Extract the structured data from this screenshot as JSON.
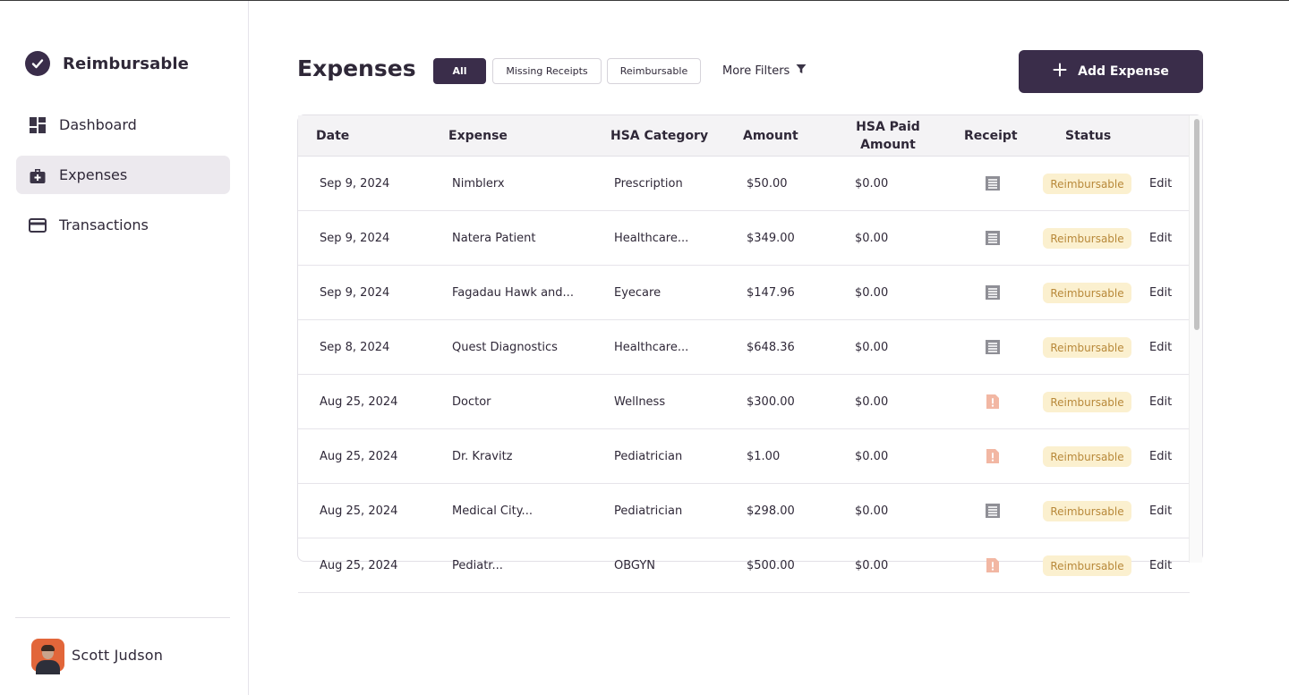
{
  "sidebar": {
    "brand": {
      "name": "Reimbursable",
      "icon": "check-circle-icon"
    },
    "nav": [
      {
        "label": "Dashboard",
        "icon": "dashboard-icon",
        "active": false
      },
      {
        "label": "Expenses",
        "icon": "medical-bag-icon",
        "active": true
      },
      {
        "label": "Transactions",
        "icon": "credit-card-icon",
        "active": false
      }
    ],
    "user": {
      "name": "Scott Judson"
    }
  },
  "header": {
    "title": "Expenses",
    "filters": [
      {
        "label": "All",
        "active": true
      },
      {
        "label": "Missing Receipts",
        "active": false
      },
      {
        "label": "Reimbursable",
        "active": false
      }
    ],
    "more_filters": "More Filters",
    "add_button": "Add Expense"
  },
  "table": {
    "columns": [
      "Date",
      "Expense",
      "HSA Category",
      "Amount",
      "HSA Paid\nAmount",
      "Receipt",
      "Status"
    ],
    "rows": [
      {
        "date": "Sep 9, 2024",
        "expense": "Nimblerx",
        "category": "Prescription",
        "amount": "$50.00",
        "hsa_paid": "$0.00",
        "receipt": "receipt-icon",
        "status": "Reimbursable",
        "action": "Edit"
      },
      {
        "date": "Sep 9, 2024",
        "expense": "Natera Patient",
        "category": "Healthcare...",
        "amount": "$349.00",
        "hsa_paid": "$0.00",
        "receipt": "receipt-icon",
        "status": "Reimbursable",
        "action": "Edit"
      },
      {
        "date": "Sep 9, 2024",
        "expense": "Fagadau Hawk and...",
        "category": "Eyecare",
        "amount": "$147.96",
        "hsa_paid": "$0.00",
        "receipt": "receipt-icon",
        "status": "Reimbursable",
        "action": "Edit"
      },
      {
        "date": "Sep 8, 2024",
        "expense": "Quest Diagnostics",
        "category": "Healthcare...",
        "amount": "$648.36",
        "hsa_paid": "$0.00",
        "receipt": "receipt-icon",
        "status": "Reimbursable",
        "action": "Edit"
      },
      {
        "date": "Aug 25, 2024",
        "expense": "Doctor",
        "category": "Wellness",
        "amount": "$300.00",
        "hsa_paid": "$0.00",
        "receipt": "missing-receipt-icon",
        "status": "Reimbursable",
        "action": "Edit"
      },
      {
        "date": "Aug 25, 2024",
        "expense": "Dr. Kravitz",
        "category": "Pediatrician",
        "amount": "$1.00",
        "hsa_paid": "$0.00",
        "receipt": "missing-receipt-icon",
        "status": "Reimbursable",
        "action": "Edit"
      },
      {
        "date": "Aug 25, 2024",
        "expense": "Medical City...",
        "category": "Pediatrician",
        "amount": "$298.00",
        "hsa_paid": "$0.00",
        "receipt": "receipt-icon",
        "status": "Reimbursable",
        "action": "Edit"
      },
      {
        "date": "Aug 25, 2024",
        "expense": "Pediatr...",
        "category": "OBGYN",
        "amount": "$500.00",
        "hsa_paid": "$0.00",
        "receipt": "missing-receipt-icon",
        "status": "Reimbursable",
        "action": "Edit"
      }
    ]
  },
  "colors": {
    "accent": "#3a2d4a",
    "badge_bg": "#fbf0cf",
    "badge_text": "#b8893a",
    "missing_receipt": "#f2b7a3",
    "receipt": "#8f8f96"
  }
}
